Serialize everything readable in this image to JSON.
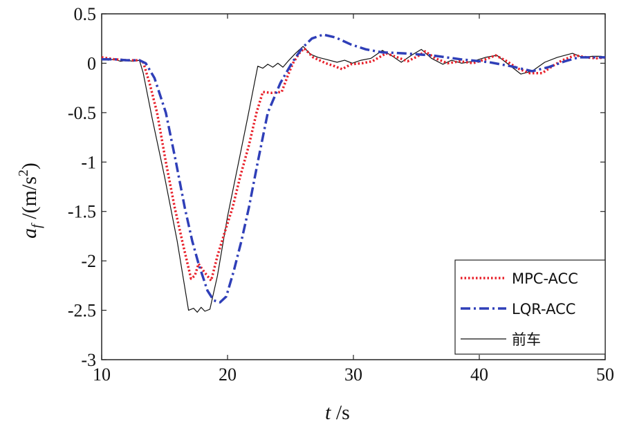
{
  "chart_data": {
    "type": "line",
    "title": "",
    "xlabel": {
      "var": "t",
      "unit": " /s"
    },
    "ylabel": {
      "var": "a",
      "sub": "f",
      "unit": " /(m/s",
      "sup": "2",
      "close": ")"
    },
    "xlim": [
      10,
      50
    ],
    "ylim": [
      -3,
      0.5
    ],
    "xticks": [
      10,
      20,
      30,
      40,
      50
    ],
    "yticks": [
      0.5,
      0,
      -0.5,
      -1,
      -1.5,
      -2,
      -2.5,
      -3
    ],
    "xtick_labels": [
      "10",
      "20",
      "30",
      "40",
      "50"
    ],
    "ytick_labels": [
      "0.5",
      "0",
      "-0.5",
      "-1",
      "-1.5",
      "-2",
      "-2.5",
      "-3"
    ],
    "grid": false,
    "legend_position": "bottom-right",
    "series": [
      {
        "name": "MPC-ACC",
        "color": "#e8202a",
        "style": "dotted",
        "points": [
          [
            10,
            0.06
          ],
          [
            11,
            0.04
          ],
          [
            12,
            0.03
          ],
          [
            13,
            0.03
          ],
          [
            13.3,
            0.01
          ],
          [
            13.8,
            -0.2
          ],
          [
            14.4,
            -0.5
          ],
          [
            15.1,
            -1.0
          ],
          [
            15.8,
            -1.46
          ],
          [
            16.4,
            -1.8
          ],
          [
            17.1,
            -2.18
          ],
          [
            17.4,
            -2.15
          ],
          [
            17.7,
            -2.03
          ],
          [
            18.2,
            -2.12
          ],
          [
            18.7,
            -2.2
          ],
          [
            19.2,
            -1.95
          ],
          [
            19.8,
            -1.7
          ],
          [
            20.4,
            -1.46
          ],
          [
            21.0,
            -1.15
          ],
          [
            21.7,
            -0.83
          ],
          [
            22.3,
            -0.5
          ],
          [
            22.8,
            -0.29
          ],
          [
            23.5,
            -0.3
          ],
          [
            24.3,
            -0.29
          ],
          [
            24.8,
            -0.12
          ],
          [
            25.2,
            0.0
          ],
          [
            25.7,
            0.1
          ],
          [
            26.1,
            0.15
          ],
          [
            26.8,
            0.06
          ],
          [
            27.8,
            0.0
          ],
          [
            28.5,
            -0.03
          ],
          [
            29.1,
            -0.06
          ],
          [
            29.8,
            -0.01
          ],
          [
            30.7,
            0.0
          ],
          [
            31.5,
            0.02
          ],
          [
            32.6,
            0.1
          ],
          [
            33.5,
            0.06
          ],
          [
            34.3,
            0.02
          ],
          [
            35.1,
            0.07
          ],
          [
            35.7,
            0.12
          ],
          [
            36.5,
            0.05
          ],
          [
            37.5,
            0.0
          ],
          [
            38.5,
            0.02
          ],
          [
            39.5,
            0.0
          ],
          [
            40.5,
            0.04
          ],
          [
            41.3,
            0.08
          ],
          [
            42.2,
            0.02
          ],
          [
            43.0,
            -0.05
          ],
          [
            44.0,
            -0.1
          ],
          [
            45.0,
            -0.1
          ],
          [
            45.8,
            -0.03
          ],
          [
            46.6,
            0.03
          ],
          [
            47.6,
            0.08
          ],
          [
            48.5,
            0.06
          ],
          [
            49.3,
            0.05
          ],
          [
            50,
            0.06
          ]
        ]
      },
      {
        "name": "LQR-ACC",
        "color": "#2f3fb8",
        "style": "dashdot",
        "points": [
          [
            10,
            0.04
          ],
          [
            11,
            0.04
          ],
          [
            12,
            0.03
          ],
          [
            13,
            0.03
          ],
          [
            13.5,
            0.0
          ],
          [
            14.2,
            -0.15
          ],
          [
            15.1,
            -0.5
          ],
          [
            15.9,
            -1.0
          ],
          [
            16.6,
            -1.46
          ],
          [
            17.2,
            -1.8
          ],
          [
            17.7,
            -2.03
          ],
          [
            18.4,
            -2.3
          ],
          [
            18.9,
            -2.4
          ],
          [
            19.4,
            -2.42
          ],
          [
            19.9,
            -2.36
          ],
          [
            20.5,
            -2.1
          ],
          [
            21.1,
            -1.8
          ],
          [
            21.7,
            -1.46
          ],
          [
            22.4,
            -1.0
          ],
          [
            23.2,
            -0.5
          ],
          [
            24.2,
            -0.2
          ],
          [
            25.1,
            0.0
          ],
          [
            25.9,
            0.15
          ],
          [
            26.7,
            0.25
          ],
          [
            27.6,
            0.29
          ],
          [
            28.6,
            0.26
          ],
          [
            29.8,
            0.19
          ],
          [
            31.0,
            0.14
          ],
          [
            32.3,
            0.11
          ],
          [
            34.0,
            0.1
          ],
          [
            36.2,
            0.08
          ],
          [
            38.5,
            0.04
          ],
          [
            40.8,
            0.01
          ],
          [
            42.5,
            -0.03
          ],
          [
            44.2,
            -0.08
          ],
          [
            45.5,
            -0.04
          ],
          [
            46.8,
            0.02
          ],
          [
            47.9,
            0.06
          ],
          [
            49,
            0.06
          ],
          [
            50,
            0.06
          ]
        ]
      },
      {
        "name": "前车",
        "color": "#111111",
        "style": "solid",
        "points": [
          [
            10,
            0.05
          ],
          [
            10.5,
            0.03
          ],
          [
            11,
            0.04
          ],
          [
            11.5,
            0.02
          ],
          [
            12,
            0.03
          ],
          [
            12.5,
            0.02
          ],
          [
            13.0,
            0.03
          ],
          [
            13.3,
            -0.1
          ],
          [
            14,
            -0.55
          ],
          [
            15,
            -1.15
          ],
          [
            16,
            -1.8
          ],
          [
            16.9,
            -2.5
          ],
          [
            17.3,
            -2.48
          ],
          [
            17.6,
            -2.52
          ],
          [
            17.9,
            -2.47
          ],
          [
            18.2,
            -2.51
          ],
          [
            18.6,
            -2.49
          ],
          [
            19.2,
            -2.15
          ],
          [
            20,
            -1.55
          ],
          [
            20.8,
            -1.05
          ],
          [
            21.6,
            -0.55
          ],
          [
            22.4,
            -0.03
          ],
          [
            22.8,
            -0.05
          ],
          [
            23.2,
            -0.01
          ],
          [
            23.6,
            -0.04
          ],
          [
            24.0,
            -0.0
          ],
          [
            24.4,
            -0.04
          ],
          [
            24.8,
            0.02
          ],
          [
            25.4,
            0.1
          ],
          [
            26.0,
            0.17
          ],
          [
            26.6,
            0.09
          ],
          [
            27.2,
            0.06
          ],
          [
            27.8,
            0.04
          ],
          [
            28.7,
            0.01
          ],
          [
            29.3,
            0.03
          ],
          [
            29.9,
            0.0
          ],
          [
            30.6,
            0.03
          ],
          [
            31.4,
            0.05
          ],
          [
            32.3,
            0.13
          ],
          [
            33.0,
            0.08
          ],
          [
            33.8,
            0.01
          ],
          [
            34.6,
            0.08
          ],
          [
            35.4,
            0.14
          ],
          [
            36.2,
            0.05
          ],
          [
            37.1,
            -0.01
          ],
          [
            37.8,
            0.03
          ],
          [
            38.6,
            0.0
          ],
          [
            39.5,
            0.02
          ],
          [
            40.5,
            0.06
          ],
          [
            41.4,
            0.08
          ],
          [
            42.2,
            0.0
          ],
          [
            43.3,
            -0.11
          ],
          [
            44.2,
            -0.08
          ],
          [
            45.2,
            0.01
          ],
          [
            46.2,
            0.06
          ],
          [
            47.4,
            0.1
          ],
          [
            48.2,
            0.06
          ],
          [
            49.0,
            0.07
          ],
          [
            49.7,
            0.07
          ],
          [
            50,
            0.06
          ]
        ]
      }
    ]
  }
}
